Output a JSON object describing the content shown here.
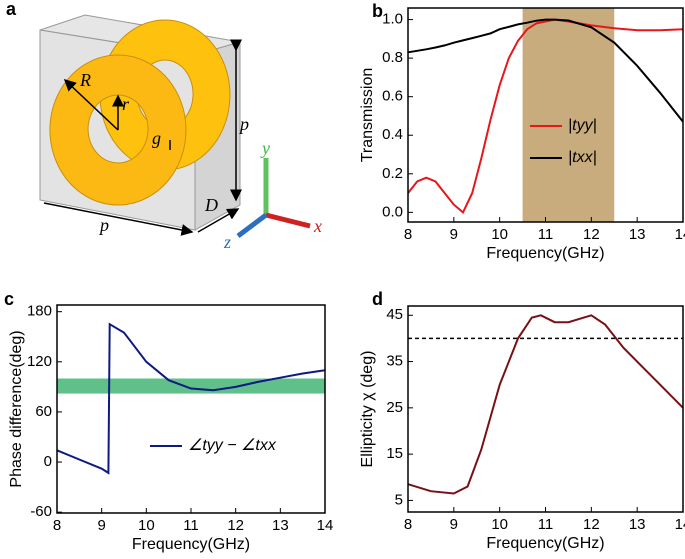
{
  "diagram": {
    "panel": "a",
    "labels": {
      "R": "R",
      "r": "r",
      "g": "g",
      "p_side": "p",
      "p_bottom": "p",
      "D": "D",
      "x": "x",
      "y": "y",
      "z": "z"
    }
  },
  "chart_data": [
    {
      "type": "line",
      "panel": "b",
      "xlabel": "Frequency(GHz)",
      "ylabel": "Transmission",
      "x": [
        8,
        8.2,
        8.4,
        8.6,
        8.8,
        9.0,
        9.2,
        9.4,
        9.6,
        9.8,
        10.0,
        10.2,
        10.4,
        10.6,
        10.8,
        11.0,
        11.2,
        11.5,
        12.0,
        12.5,
        13.0,
        13.5,
        14.0
      ],
      "series": [
        {
          "name": "|tyy|",
          "color": "#e8161b",
          "values": [
            0.1,
            0.16,
            0.18,
            0.16,
            0.1,
            0.04,
            0.0,
            0.1,
            0.28,
            0.48,
            0.66,
            0.8,
            0.89,
            0.95,
            0.98,
            0.99,
            1.0,
            0.99,
            0.97,
            0.955,
            0.945,
            0.945,
            0.95
          ]
        },
        {
          "name": "|txx|",
          "color": "#000000",
          "values": [
            0.83,
            0.838,
            0.846,
            0.855,
            0.866,
            0.88,
            0.892,
            0.904,
            0.916,
            0.928,
            0.95,
            0.962,
            0.975,
            0.984,
            0.994,
            1.0,
            1.0,
            0.995,
            0.96,
            0.88,
            0.76,
            0.62,
            0.47
          ]
        }
      ],
      "highlight_x": [
        10.5,
        12.5
      ],
      "highlight_color": "#c9ac7d",
      "xlim": [
        8,
        14
      ],
      "xticks": [
        8,
        9,
        10,
        11,
        12,
        13,
        14
      ],
      "ylim": [
        -0.05,
        1.06
      ],
      "yticks": [
        {
          "value": 0,
          "label": "0.0"
        },
        0.2,
        0.4,
        0.6,
        0.8,
        {
          "value": 1,
          "label": "1.0"
        }
      ]
    },
    {
      "type": "line",
      "panel": "c",
      "xlabel": "Frequency(GHz)",
      "ylabel": "Phase difference(deg)",
      "x": [
        8,
        8.5,
        9,
        9.15,
        9.18,
        9.5,
        10,
        10.5,
        11,
        11.5,
        12,
        12.5,
        13,
        13.5,
        14
      ],
      "series": [
        {
          "name": "∠tyy − ∠txx",
          "color": "#0d1a80",
          "values": [
            14,
            3,
            -8,
            -13,
            165,
            155,
            120,
            98,
            88,
            86,
            90,
            96,
            101,
            106,
            110
          ]
        }
      ],
      "highlight_y": [
        82,
        100
      ],
      "highlight_color": "#5fc08a",
      "xlim": [
        8,
        14
      ],
      "xticks": [
        8,
        9,
        10,
        11,
        12,
        13,
        14
      ],
      "ylim": [
        -61,
        188
      ],
      "yticks": [
        -60,
        0,
        60,
        120,
        180
      ]
    },
    {
      "type": "line",
      "panel": "d",
      "xlabel": "Frequency(GHz)",
      "ylabel": "Ellipticity χ (deg)",
      "x": [
        8,
        8.5,
        9,
        9.3,
        9.6,
        10,
        10.4,
        10.7,
        10.9,
        11.2,
        11.5,
        12,
        12.3,
        12.7,
        13.2,
        13.6,
        14
      ],
      "series": [
        {
          "name": null,
          "color": "#7a1014",
          "values": [
            8.5,
            7,
            6.5,
            8,
            16,
            30,
            40,
            44.5,
            45,
            43.5,
            43.5,
            45,
            43,
            38,
            33,
            29,
            25
          ]
        }
      ],
      "reference_line": 40,
      "xlim": [
        8,
        14
      ],
      "xticks": [
        8,
        9,
        10,
        11,
        12,
        13,
        14
      ],
      "ylim": [
        2.5,
        47
      ],
      "yticks": [
        5,
        15,
        25,
        35,
        45
      ]
    }
  ]
}
